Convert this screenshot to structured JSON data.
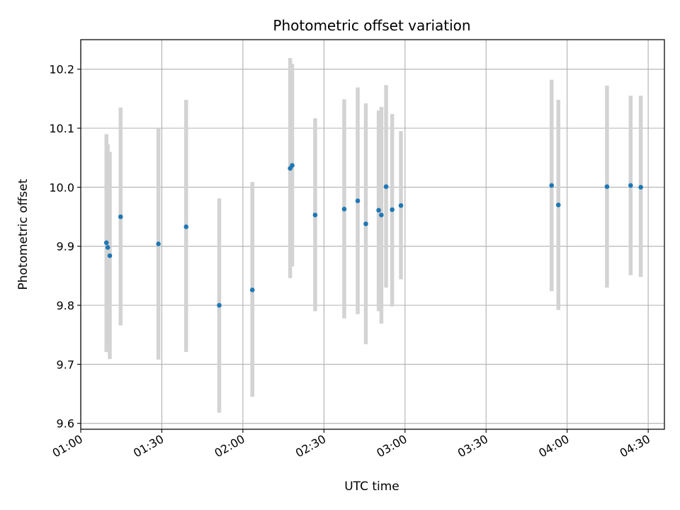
{
  "chart_data": {
    "type": "scatter",
    "title": "Photometric offset variation",
    "xlabel": "UTC time",
    "ylabel": "Photometric offset",
    "x_unit": "HH:MM UTC",
    "xlim": [
      "01:00",
      "04:36"
    ],
    "ylim": [
      9.59,
      10.25
    ],
    "x_ticks": [
      "01:00",
      "01:30",
      "02:00",
      "02:30",
      "03:00",
      "03:30",
      "04:00",
      "04:30"
    ],
    "y_ticks": [
      9.6,
      9.7,
      9.8,
      9.9,
      10.0,
      10.1,
      10.2
    ],
    "grid": true,
    "colors": {
      "points": "#1f77b4",
      "errorbars": "#d3d3d3",
      "grid": "#b0b0b0"
    },
    "points": [
      {
        "x": "01:09:30",
        "y": 9.906,
        "ylow": 9.721,
        "yhigh": 10.09
      },
      {
        "x": "01:10:00",
        "y": 9.898,
        "ylow": 9.722,
        "yhigh": 10.073
      },
      {
        "x": "01:10:45",
        "y": 9.884,
        "ylow": 9.709,
        "yhigh": 10.06
      },
      {
        "x": "01:14:45",
        "y": 9.95,
        "ylow": 9.766,
        "yhigh": 10.135
      },
      {
        "x": "01:28:45",
        "y": 9.904,
        "ylow": 9.708,
        "yhigh": 10.1
      },
      {
        "x": "01:39:00",
        "y": 9.933,
        "ylow": 9.721,
        "yhigh": 10.148
      },
      {
        "x": "01:51:15",
        "y": 9.8,
        "ylow": 9.618,
        "yhigh": 9.981
      },
      {
        "x": "02:03:30",
        "y": 9.826,
        "ylow": 9.645,
        "yhigh": 10.009
      },
      {
        "x": "02:17:30",
        "y": 10.032,
        "ylow": 9.846,
        "yhigh": 10.219
      },
      {
        "x": "02:18:15",
        "y": 10.037,
        "ylow": 9.866,
        "yhigh": 10.209
      },
      {
        "x": "02:26:45",
        "y": 9.953,
        "ylow": 9.79,
        "yhigh": 10.117
      },
      {
        "x": "02:37:30",
        "y": 9.963,
        "ylow": 9.778,
        "yhigh": 10.149
      },
      {
        "x": "02:42:30",
        "y": 9.977,
        "ylow": 9.785,
        "yhigh": 10.169
      },
      {
        "x": "02:45:30",
        "y": 9.938,
        "ylow": 9.734,
        "yhigh": 10.142
      },
      {
        "x": "02:50:15",
        "y": 9.961,
        "ylow": 9.79,
        "yhigh": 10.13
      },
      {
        "x": "02:51:15",
        "y": 9.953,
        "ylow": 9.769,
        "yhigh": 10.136
      },
      {
        "x": "02:53:00",
        "y": 10.001,
        "ylow": 9.83,
        "yhigh": 10.173
      },
      {
        "x": "02:55:15",
        "y": 9.962,
        "ylow": 9.798,
        "yhigh": 10.124
      },
      {
        "x": "02:58:30",
        "y": 9.969,
        "ylow": 9.844,
        "yhigh": 10.095
      },
      {
        "x": "03:54:15",
        "y": 10.003,
        "ylow": 9.824,
        "yhigh": 10.182
      },
      {
        "x": "03:56:45",
        "y": 9.97,
        "ylow": 9.792,
        "yhigh": 10.148
      },
      {
        "x": "04:14:45",
        "y": 10.001,
        "ylow": 9.83,
        "yhigh": 10.172
      },
      {
        "x": "04:23:30",
        "y": 10.003,
        "ylow": 9.851,
        "yhigh": 10.155
      },
      {
        "x": "04:27:15",
        "y": 10.0,
        "ylow": 9.848,
        "yhigh": 10.155
      }
    ]
  }
}
